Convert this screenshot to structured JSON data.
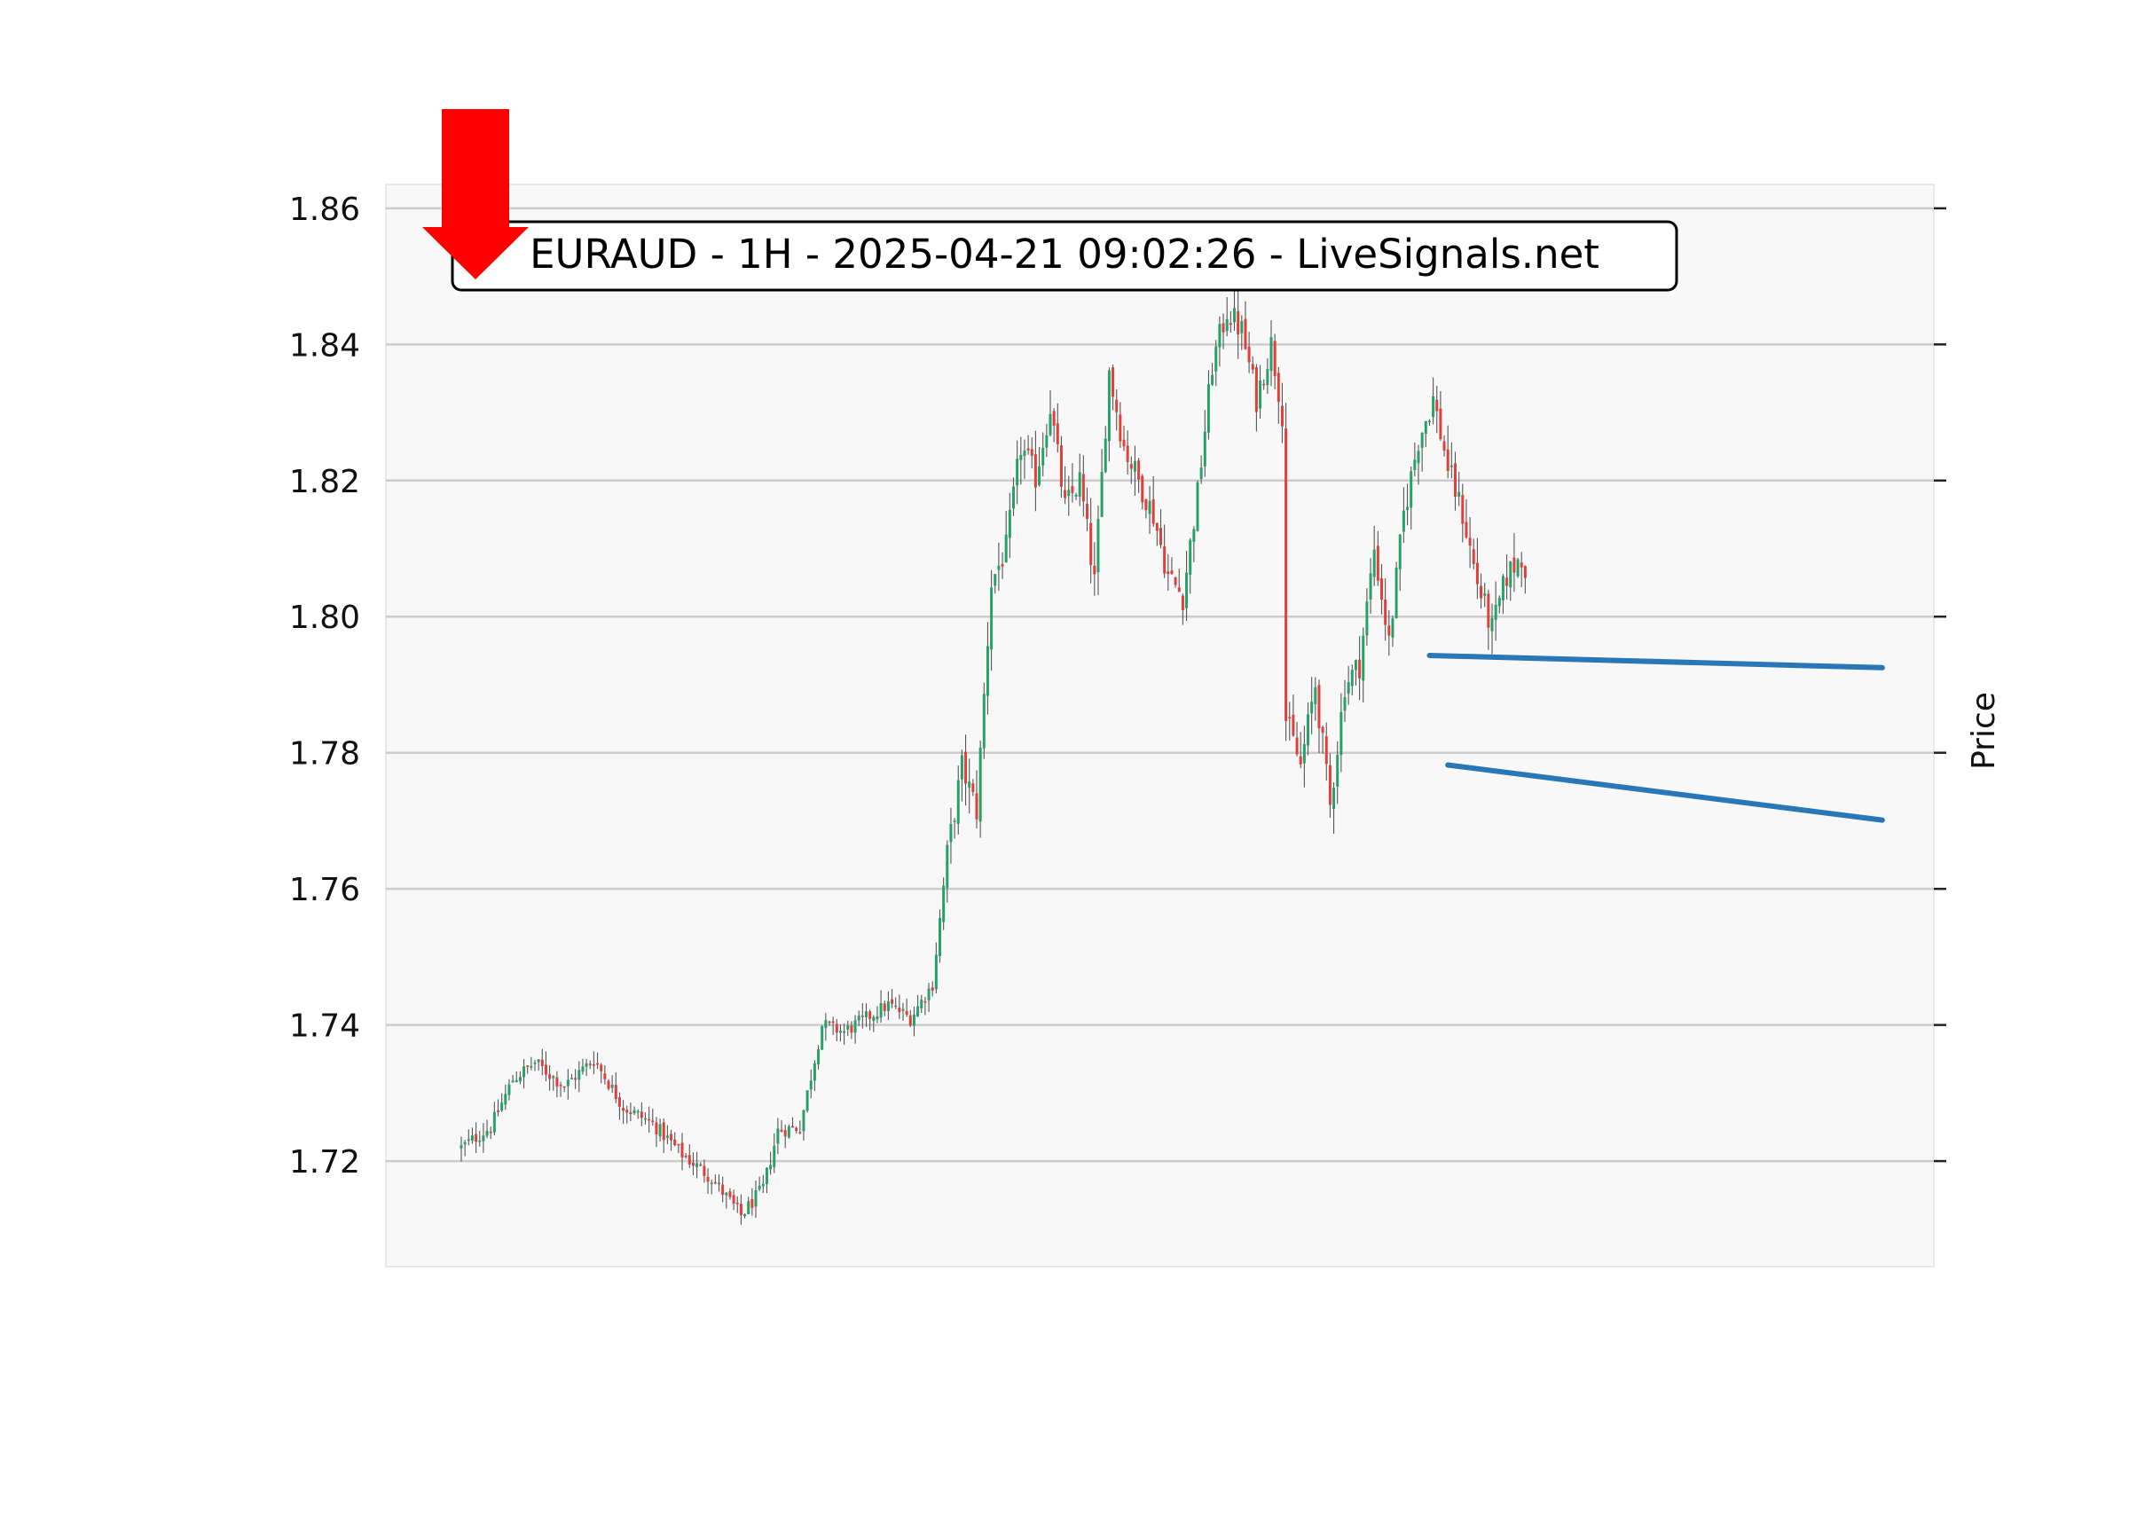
{
  "chart_data": {
    "type": "candlestick",
    "title": "EURAUD - 1H - 2025-04-21 09:02:26 - LiveSignals.net",
    "ylabel": "Price",
    "xlabel": "",
    "ylim": [
      1.7045,
      1.8635
    ],
    "yticks": [
      1.72,
      1.74,
      1.76,
      1.78,
      1.8,
      1.82,
      1.84,
      1.86
    ],
    "ytick_labels": [
      "1.72",
      "1.74",
      "1.76",
      "1.78",
      "1.80",
      "1.82",
      "1.84",
      "1.86"
    ],
    "bar_count": 290,
    "grid": true,
    "colors": {
      "up": "#26a269",
      "down": "#e0403a",
      "trendline": "#2a77b8",
      "signal_arrow": "#ff0000",
      "plot_background": "#f8f8f8",
      "grid": "#cccccc"
    },
    "signal": "sell",
    "close_anchors": [
      [
        0,
        1.722
      ],
      [
        8,
        1.725
      ],
      [
        14,
        1.732
      ],
      [
        20,
        1.7345
      ],
      [
        28,
        1.731
      ],
      [
        36,
        1.735
      ],
      [
        44,
        1.728
      ],
      [
        52,
        1.7255
      ],
      [
        60,
        1.721
      ],
      [
        68,
        1.7175
      ],
      [
        76,
        1.712
      ],
      [
        82,
        1.716
      ],
      [
        86,
        1.7245
      ],
      [
        92,
        1.725
      ],
      [
        98,
        1.74
      ],
      [
        104,
        1.739
      ],
      [
        110,
        1.741
      ],
      [
        116,
        1.743
      ],
      [
        122,
        1.741
      ],
      [
        128,
        1.746
      ],
      [
        132,
        1.765
      ],
      [
        136,
        1.778
      ],
      [
        140,
        1.7715
      ],
      [
        144,
        1.805
      ],
      [
        148,
        1.81
      ],
      [
        152,
        1.825
      ],
      [
        156,
        1.8205
      ],
      [
        160,
        1.831
      ],
      [
        164,
        1.816
      ],
      [
        168,
        1.82
      ],
      [
        172,
        1.805
      ],
      [
        176,
        1.836
      ],
      [
        180,
        1.825
      ],
      [
        184,
        1.82
      ],
      [
        188,
        1.815
      ],
      [
        192,
        1.806
      ],
      [
        196,
        1.803
      ],
      [
        200,
        1.818
      ],
      [
        204,
        1.837
      ],
      [
        208,
        1.845
      ],
      [
        212,
        1.842
      ],
      [
        216,
        1.832
      ],
      [
        220,
        1.84
      ],
      [
        223,
        1.83
      ],
      [
        224,
        1.785
      ],
      [
        228,
        1.778
      ],
      [
        232,
        1.79
      ],
      [
        236,
        1.772
      ],
      [
        240,
        1.79
      ],
      [
        244,
        1.793
      ],
      [
        248,
        1.81
      ],
      [
        252,
        1.796
      ],
      [
        256,
        1.815
      ],
      [
        260,
        1.826
      ],
      [
        264,
        1.832
      ],
      [
        268,
        1.822
      ],
      [
        272,
        1.815
      ],
      [
        276,
        1.805
      ],
      [
        280,
        1.798
      ],
      [
        284,
        1.806
      ],
      [
        288,
        1.809
      ],
      [
        292,
        1.802
      ],
      [
        296,
        1.8
      ],
      [
        300,
        1.795
      ],
      [
        304,
        1.794
      ],
      [
        308,
        1.787
      ],
      [
        312,
        1.783
      ],
      [
        316,
        1.776
      ],
      [
        320,
        1.778
      ],
      [
        324,
        1.786
      ],
      [
        328,
        1.793
      ],
      [
        332,
        1.785
      ],
      [
        336,
        1.784
      ],
      [
        340,
        1.789
      ],
      [
        344,
        1.791
      ],
      [
        348,
        1.792
      ],
      [
        352,
        1.789
      ],
      [
        356,
        1.784
      ],
      [
        360,
        1.779
      ],
      [
        364,
        1.78
      ],
      [
        368,
        1.782
      ],
      [
        372,
        1.785
      ],
      [
        376,
        1.787
      ],
      [
        380,
        1.789
      ],
      [
        384,
        1.79
      ],
      [
        386,
        1.797
      ],
      [
        390,
        1.794
      ]
    ],
    "trendlines": [
      {
        "name": "resistance",
        "x_start": 263,
        "y_start": 1.7943,
        "x_end": 386,
        "y_end": 1.7925
      },
      {
        "name": "support",
        "x_start": 268,
        "y_start": 1.7782,
        "x_end": 386,
        "y_end": 1.7701
      }
    ]
  }
}
